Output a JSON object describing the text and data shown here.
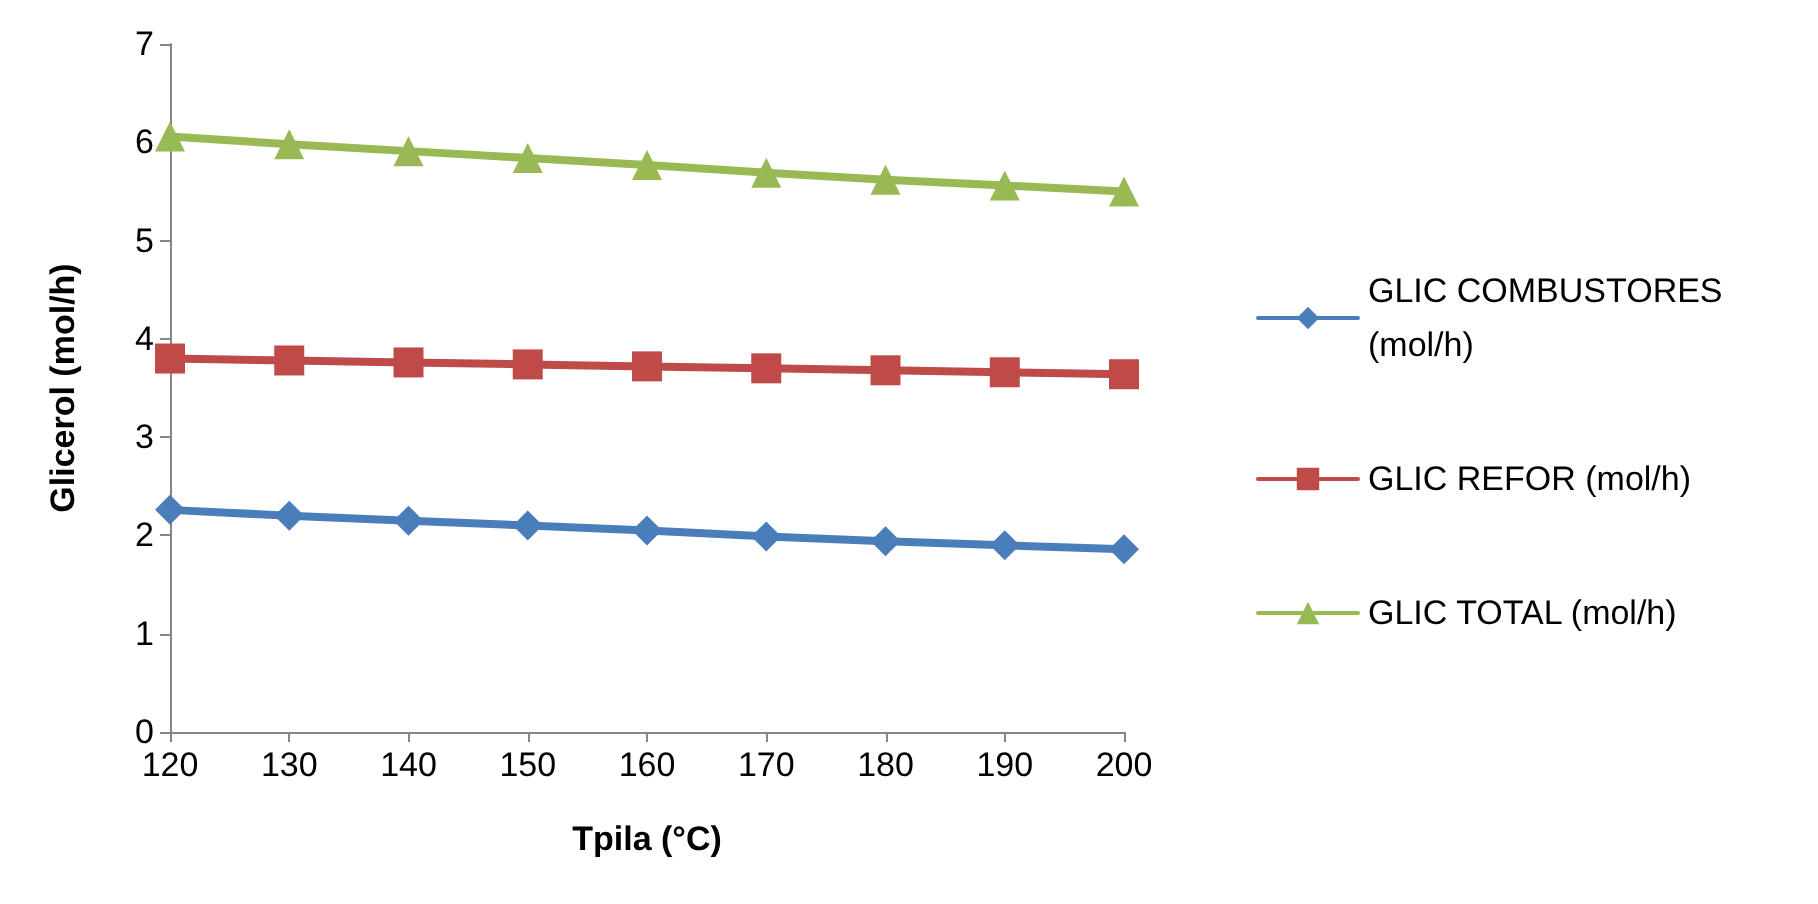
{
  "chart_data": {
    "type": "line",
    "xlabel": "Tpila (°C)",
    "ylabel": "Glicerol (mol/h)",
    "x": [
      120,
      130,
      140,
      150,
      160,
      170,
      180,
      190,
      200
    ],
    "series": [
      {
        "name": "GLIC COMBUSTORES (mol/h)",
        "color": "#4a7ebb",
        "marker": "diamond",
        "values": [
          2.26,
          2.2,
          2.15,
          2.1,
          2.05,
          1.99,
          1.94,
          1.9,
          1.86
        ]
      },
      {
        "name": "GLIC REFOR (mol/h)",
        "color": "#be4b48",
        "marker": "square",
        "values": [
          3.8,
          3.78,
          3.76,
          3.74,
          3.72,
          3.7,
          3.68,
          3.66,
          3.64
        ]
      },
      {
        "name": "GLIC TOTAL (mol/h)",
        "color": "#98b954",
        "marker": "triangle",
        "values": [
          6.06,
          5.98,
          5.91,
          5.84,
          5.77,
          5.69,
          5.62,
          5.56,
          5.5
        ]
      }
    ],
    "xlim": [
      120,
      200
    ],
    "xticks": [
      120,
      130,
      140,
      150,
      160,
      170,
      180,
      190,
      200
    ],
    "ylim": [
      0,
      7
    ],
    "yticks": [
      0,
      1,
      2,
      3,
      4,
      5,
      6,
      7
    ],
    "grid": false,
    "legend": "right",
    "line_style": "solid"
  }
}
